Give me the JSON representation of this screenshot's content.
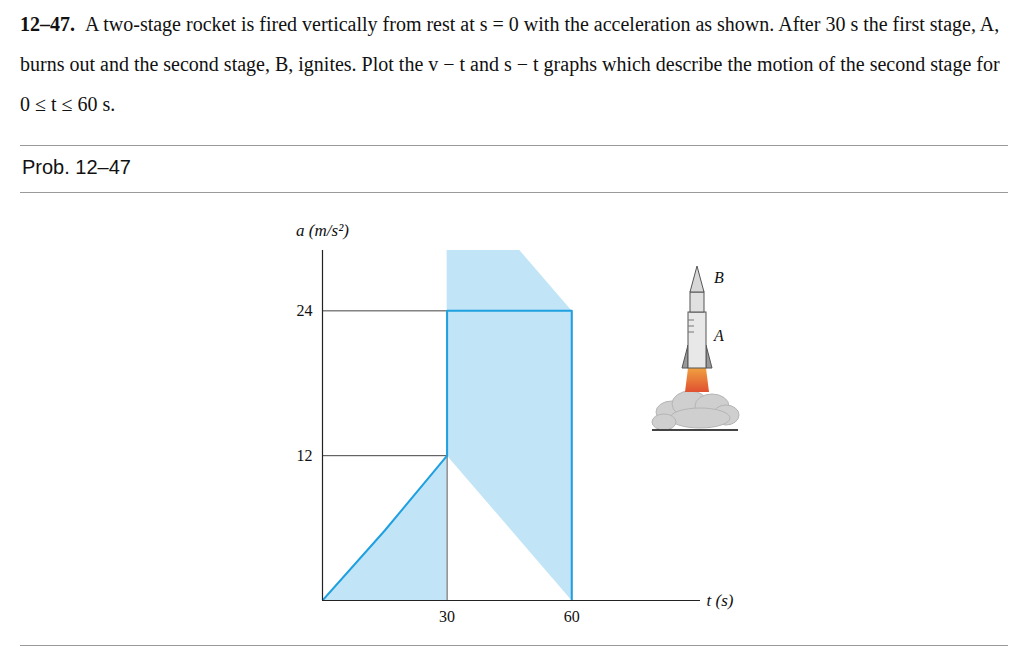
{
  "problem": {
    "number": "12–47.",
    "text": "A two-stage rocket is fired vertically from rest at s = 0 with the acceleration as shown. After 30 s the first stage, A, burns out and the second stage, B, ignites. Plot the v − t and s − t graphs which describe the motion of the second stage for 0 ≤ t ≤ 60 s."
  },
  "caption": "Prob. 12–47",
  "chart_data": {
    "type": "area",
    "x": [
      0,
      15,
      30,
      30,
      60,
      60
    ],
    "values": [
      0,
      5.8,
      12,
      24,
      24,
      0
    ],
    "color": "#1fa0e0",
    "xlabel": "t (s)",
    "ylabel": "a (m/s²)",
    "xlim": [
      0,
      91
    ],
    "ylim": [
      0,
      29
    ],
    "xticks": [
      30,
      60
    ],
    "yticks": [
      12,
      24
    ],
    "annotations": [
      "B",
      "A"
    ]
  }
}
